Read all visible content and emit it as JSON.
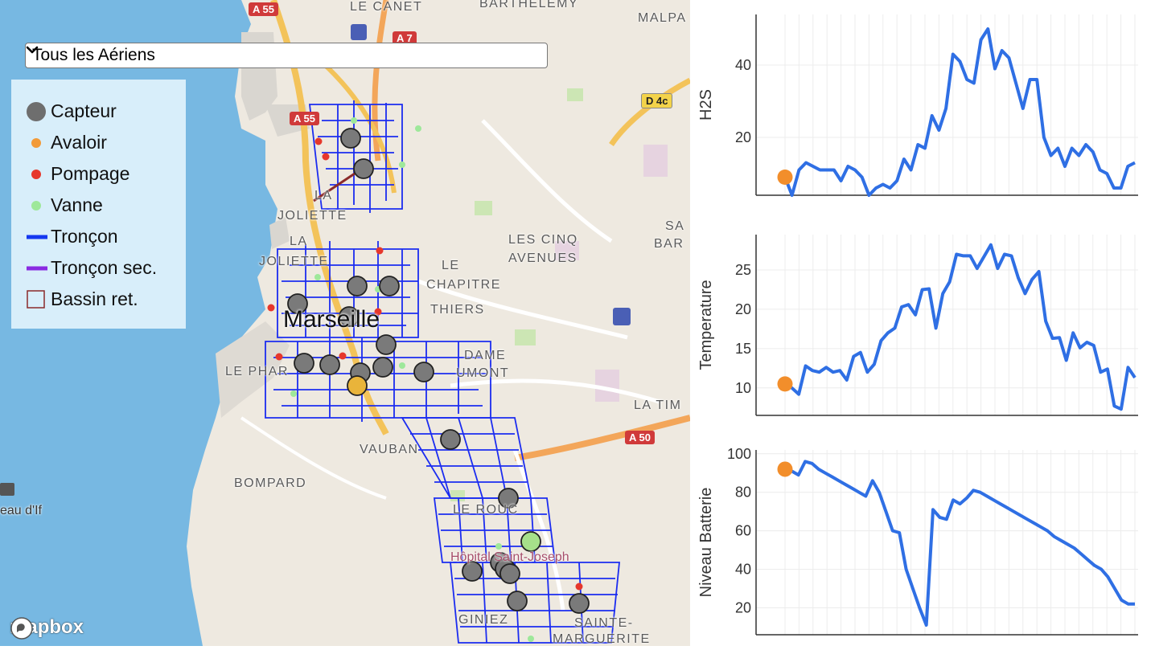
{
  "map": {
    "filter_select": {
      "value": "Tous les Aériens"
    },
    "legend": [
      {
        "label": "Capteur",
        "symbol": "big-circle",
        "color": "#6e6e6e"
      },
      {
        "label": "Avaloir",
        "symbol": "dot",
        "color": "#f29a38"
      },
      {
        "label": "Pompage",
        "symbol": "dot",
        "color": "#e6372b"
      },
      {
        "label": "Vanne",
        "symbol": "dot",
        "color": "#9ee89a"
      },
      {
        "label": "Tronçon",
        "symbol": "line",
        "color": "#1438f0"
      },
      {
        "label": "Tronçon sec.",
        "symbol": "line",
        "color": "#8a2be2"
      },
      {
        "label": "Bassin ret.",
        "symbol": "square",
        "color": "#8b2a2a"
      }
    ],
    "city_label": "Marseille",
    "places": [
      "LE CANET",
      "BARTHELEMY",
      "MALPA",
      "JOLIETTE",
      "LA",
      "LA JOLIETTE",
      "LES CINQ",
      "AVENUES",
      "LE",
      "CHAPITRE",
      "THIERS",
      "DAME",
      "UMONT",
      "LE PHAR",
      "VAUBAN",
      "BOMPARD",
      "LA TIM",
      "SA",
      "BAR",
      "eau d'If",
      "LE ROUC",
      "GINIEZ",
      "SAINTE-",
      "MARGUERITE",
      "Hôpital Saint-Joseph"
    ],
    "shields": [
      "A 55",
      "A 7",
      "A 55",
      "D 4c",
      "A 50"
    ],
    "attribution": "mapbox"
  },
  "charts": {
    "chart_data": [
      {
        "type": "line",
        "ylabel": "H2S",
        "yticks": [
          20,
          40
        ],
        "ylim": [
          4,
          54
        ],
        "highlight": {
          "index": 0,
          "value": 9,
          "color": "#f28e2b"
        },
        "series": [
          {
            "color": "#2f6fe4",
            "values": [
              9,
              4,
              11,
              13,
              12,
              11,
              11,
              11,
              8,
              12,
              11,
              9,
              4,
              6,
              7,
              6,
              8,
              14,
              11,
              18,
              17,
              26,
              22,
              28,
              43,
              41,
              36,
              35,
              47,
              50,
              39,
              44,
              42,
              35,
              28,
              36,
              36,
              20,
              15,
              17,
              12,
              17,
              15,
              18,
              16,
              11,
              10,
              6,
              6,
              12,
              13
            ]
          }
        ]
      },
      {
        "type": "line",
        "ylabel": "Temperature",
        "yticks": [
          10,
          15,
          20,
          25
        ],
        "ylim": [
          6.5,
          29.5
        ],
        "highlight": {
          "index": 0,
          "value": 10.5,
          "color": "#f28e2b"
        },
        "series": [
          {
            "color": "#2f6fe4",
            "values": [
              10.5,
              10,
              9.2,
              12.8,
              12.2,
              12,
              12.6,
              12,
              12.2,
              11,
              14,
              14.5,
              12,
              13,
              16,
              17,
              17.6,
              20.3,
              20.6,
              19.3,
              22.5,
              22.6,
              17.6,
              22,
              23.5,
              27,
              26.8,
              26.8,
              25.2,
              26.7,
              28.2,
              25.2,
              27,
              26.8,
              24,
              22,
              23.8,
              24.8,
              18.5,
              16.3,
              16.4,
              13.5,
              17,
              15.1,
              15.8,
              15.4,
              12,
              12.4,
              7.7,
              7.3,
              12.6,
              11.3
            ]
          }
        ]
      },
      {
        "type": "line",
        "ylabel": "Niveau Batterie",
        "yticks": [
          20,
          40,
          60,
          80,
          100
        ],
        "ylim": [
          6,
          102
        ],
        "highlight": {
          "index": 0,
          "value": 92,
          "color": "#f28e2b"
        },
        "series": [
          {
            "color": "#2f6fe4",
            "values": [
              92,
              91,
              89,
              96,
              95,
              92,
              90,
              88,
              86,
              84,
              82,
              80,
              78,
              86,
              80,
              70,
              60,
              59,
              40,
              30,
              20,
              11,
              71,
              67,
              66,
              76,
              74,
              77,
              81,
              80,
              78,
              76,
              74,
              72,
              70,
              68,
              66,
              64,
              62,
              60,
              57,
              55,
              53,
              51,
              48,
              45,
              42,
              40,
              36,
              30,
              24,
              22,
              22
            ]
          }
        ]
      }
    ]
  }
}
